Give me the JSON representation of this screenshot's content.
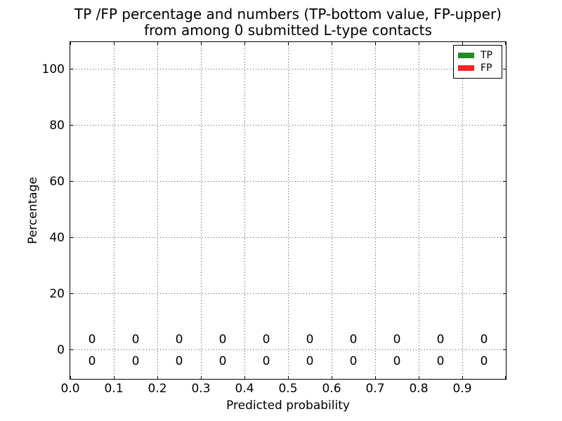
{
  "title": {
    "line1": "TP /FP percentage and numbers (TP-bottom value, FP-upper)",
    "line2": "from among 0 submitted L-type contacts"
  },
  "axes": {
    "xlabel": "Predicted probability",
    "ylabel": "Percentage",
    "xtick_labels": [
      "0.0",
      "0.1",
      "0.2",
      "0.3",
      "0.4",
      "0.5",
      "0.6",
      "0.7",
      "0.8",
      "0.9"
    ],
    "ytick_labels": [
      "0",
      "20",
      "40",
      "60",
      "80",
      "100"
    ]
  },
  "legend": {
    "items": [
      {
        "label": "TP",
        "color": "#228b22"
      },
      {
        "label": "FP",
        "color": "#ff2222"
      }
    ]
  },
  "bar_labels": {
    "upper_fp": [
      "0",
      "0",
      "0",
      "0",
      "0",
      "0",
      "0",
      "0",
      "0",
      "0"
    ],
    "lower_tp": [
      "0",
      "0",
      "0",
      "0",
      "0",
      "0",
      "0",
      "0",
      "0",
      "0"
    ]
  },
  "chart_data": {
    "type": "bar",
    "stacked": true,
    "title": "TP /FP percentage and numbers (TP-bottom value, FP-upper)\nfrom among 0 submitted L-type contacts",
    "xlabel": "Predicted probability",
    "ylabel": "Percentage",
    "x": [
      0.05,
      0.15,
      0.25,
      0.35,
      0.45,
      0.55,
      0.65,
      0.75,
      0.85,
      0.95
    ],
    "bin_width": 0.1,
    "series": [
      {
        "name": "TP",
        "color": "#228b22",
        "values": [
          0,
          0,
          0,
          0,
          0,
          0,
          0,
          0,
          0,
          0
        ]
      },
      {
        "name": "FP",
        "color": "#ff2222",
        "values": [
          0,
          0,
          0,
          0,
          0,
          0,
          0,
          0,
          0,
          0
        ]
      }
    ],
    "annotations": {
      "fp_counts_upper_row": [
        0,
        0,
        0,
        0,
        0,
        0,
        0,
        0,
        0,
        0
      ],
      "tp_counts_bottom_row": [
        0,
        0,
        0,
        0,
        0,
        0,
        0,
        0,
        0,
        0
      ]
    },
    "xlim": [
      0.0,
      1.0
    ],
    "ylim": [
      -10.5,
      109.5
    ],
    "xticks": [
      0.0,
      0.1,
      0.2,
      0.3,
      0.4,
      0.5,
      0.6,
      0.7,
      0.8,
      0.9
    ],
    "yticks": [
      0,
      20,
      40,
      60,
      80,
      100
    ],
    "grid": "dotted",
    "legend_position": "upper right"
  }
}
